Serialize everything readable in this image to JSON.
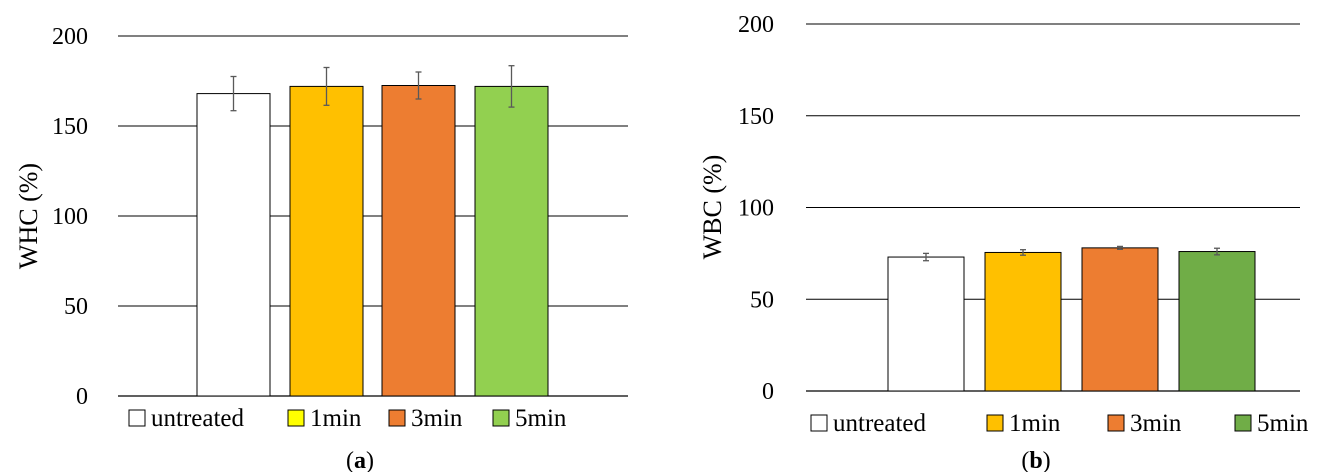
{
  "chart_data": [
    {
      "panel": "(a)",
      "type": "bar",
      "ylabel": "WHC (%)",
      "ylim": [
        0,
        200
      ],
      "yticks": [
        0,
        50,
        100,
        150,
        200
      ],
      "grid": true,
      "legend_position": "bottom",
      "series": [
        {
          "name": "untreated",
          "color": "#ffffff",
          "legend_color": "#ffffff",
          "value": 168,
          "error": 9.5
        },
        {
          "name": "1min",
          "color": "#ffc000",
          "legend_color": "#ffff00",
          "value": 172,
          "error": 10.5
        },
        {
          "name": "3min",
          "color": "#ed7d31",
          "legend_color": "#ed7d31",
          "value": 172.5,
          "error": 7.5
        },
        {
          "name": "5min",
          "color": "#92d050",
          "legend_color": "#92d050",
          "value": 172,
          "error": 11.5
        }
      ]
    },
    {
      "panel": "(b)",
      "type": "bar",
      "ylabel": "WBC (%)",
      "ylim": [
        0,
        200
      ],
      "yticks": [
        0,
        50,
        100,
        150,
        200
      ],
      "grid": true,
      "legend_position": "bottom",
      "series": [
        {
          "name": "untreated",
          "color": "#ffffff",
          "legend_color": "#ffffff",
          "value": 73,
          "error": 2
        },
        {
          "name": "1min",
          "color": "#ffc000",
          "legend_color": "#ffc000",
          "value": 75.5,
          "error": 1.5
        },
        {
          "name": "3min",
          "color": "#ed7d31",
          "legend_color": "#ed7d31",
          "value": 78,
          "error": 0.8
        },
        {
          "name": "5min",
          "color": "#70ad47",
          "legend_color": "#70ad47",
          "value": 76,
          "error": 1.8
        }
      ]
    }
  ],
  "captions": {
    "a_open": "(",
    "a_letter": "a",
    "a_close": ")",
    "b_open": "(",
    "b_letter": "b",
    "b_close": ")"
  }
}
